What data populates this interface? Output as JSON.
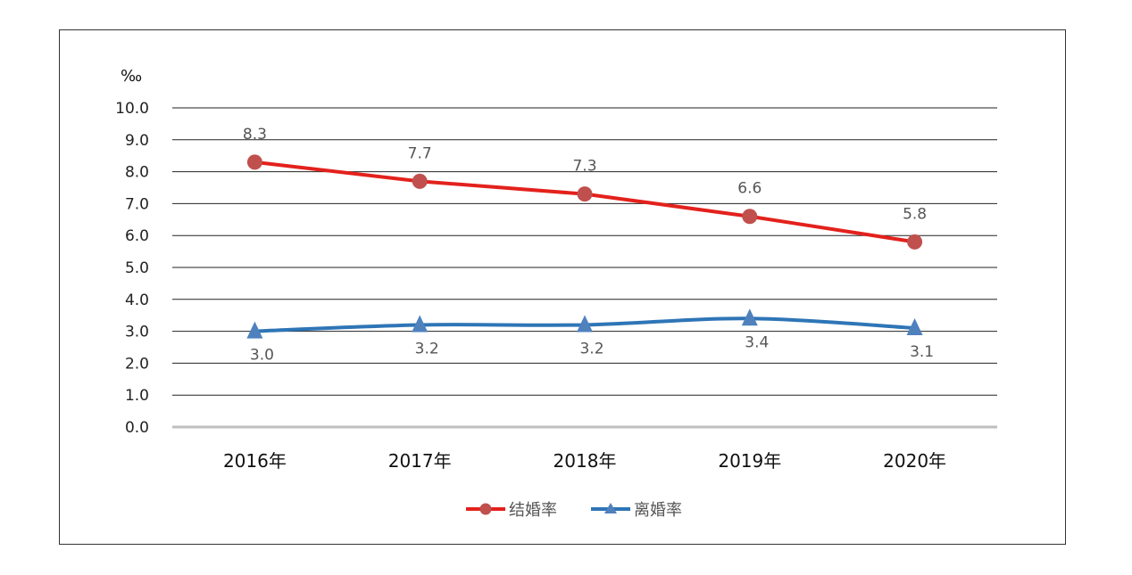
{
  "chart_data": {
    "type": "line",
    "title": "",
    "xlabel": "",
    "ylabel": "‰",
    "categories": [
      "2016年",
      "2017年",
      "2018年",
      "2019年",
      "2020年"
    ],
    "ylim": [
      0,
      10
    ],
    "yticks": [
      "0.0",
      "1.0",
      "2.0",
      "3.0",
      "4.0",
      "5.0",
      "6.0",
      "7.0",
      "8.0",
      "9.0",
      "10.0"
    ],
    "grid": true,
    "legend_position": "bottom",
    "series": [
      {
        "name": "结婚率",
        "values": [
          8.3,
          7.7,
          7.3,
          6.6,
          5.8
        ],
        "labels": [
          "8.3",
          "7.7",
          "7.3",
          "6.6",
          "5.8"
        ],
        "color": "#e3211c",
        "marker_color": "#c0504d",
        "marker": "circle"
      },
      {
        "name": "离婚率",
        "values": [
          3.0,
          3.2,
          3.2,
          3.4,
          3.1
        ],
        "labels": [
          "3.0",
          "3.2",
          "3.2",
          "3.4",
          "3.1"
        ],
        "color": "#2e75b6",
        "marker_color": "#4f81bd",
        "marker": "triangle"
      }
    ]
  }
}
